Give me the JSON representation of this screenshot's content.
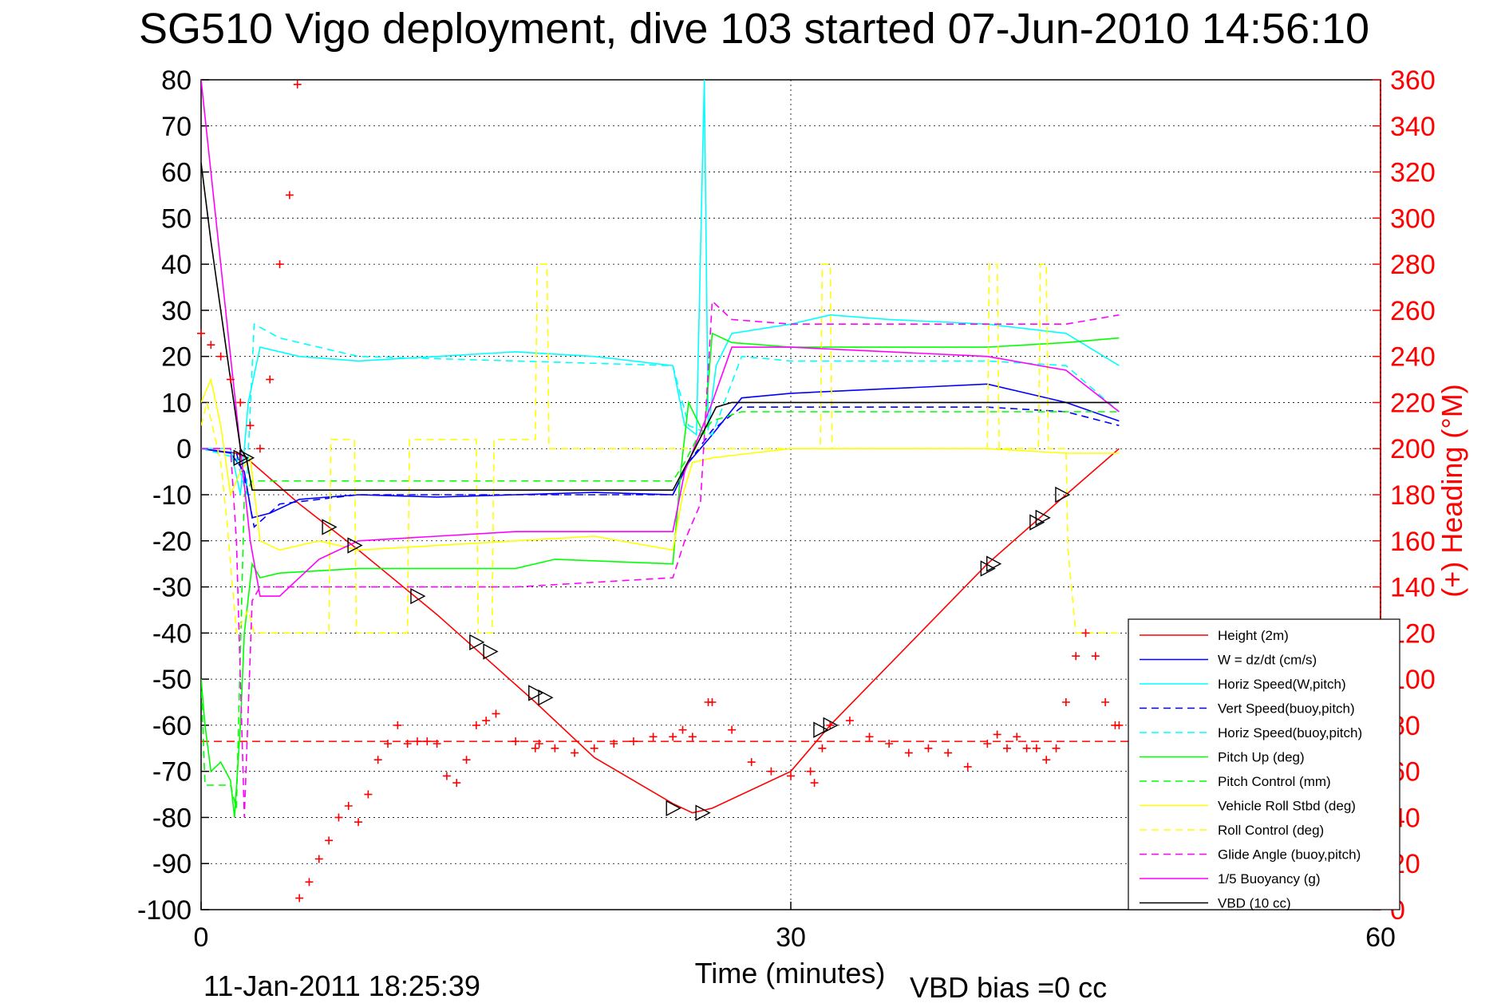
{
  "chart_data": {
    "type": "line",
    "title": "SG510 Vigo deployment, dive 103 started 07-Jun-2010 14:56:10",
    "xlabel": "Time (minutes)",
    "ylabel": "",
    "y2label": "(+) Heading (°M)",
    "xlim": [
      0,
      60
    ],
    "ylim": [
      -100,
      80
    ],
    "y2lim": [
      0,
      360
    ],
    "xticks": [
      "0",
      "30",
      "60"
    ],
    "yticks": [
      "80",
      "70",
      "60",
      "50",
      "40",
      "30",
      "20",
      "10",
      "0",
      "-10",
      "-20",
      "-30",
      "-40",
      "-50",
      "-60",
      "-70",
      "-80",
      "-90",
      "-100"
    ],
    "y2ticks": [
      "360",
      "340",
      "320",
      "300",
      "280",
      "260",
      "240",
      "220",
      "200",
      "180",
      "160",
      "140",
      "120",
      "100",
      "80",
      "60",
      "40",
      "20",
      "0"
    ],
    "grid": true,
    "legend_position": "bottom-right",
    "footer_date": "11-Jan-2011 18:25:39",
    "footer_bias": "VBD bias =0 cc",
    "series": [
      {
        "name": "Height (2m)",
        "color": "#ff0000",
        "style": "solid",
        "x": [
          0,
          1.8,
          2.3,
          5,
          8,
          12,
          17,
          20,
          24,
          25,
          26,
          30,
          32,
          40,
          44,
          46.7
        ],
        "y": [
          0,
          -1,
          -2,
          -12,
          -22,
          -36,
          -55,
          -67,
          -77,
          -79,
          -78,
          -70,
          -60,
          -25,
          -10,
          0
        ]
      },
      {
        "name": "W = dz/dt (cm/s)",
        "color": "#0000ff",
        "style": "solid",
        "x": [
          0,
          1.5,
          2.2,
          2.6,
          3.5,
          5,
          8,
          12,
          16,
          20,
          24,
          24.8,
          26,
          27.5,
          30,
          35,
          40,
          44,
          46.7
        ],
        "y": [
          0,
          -1,
          -5,
          -15,
          -14,
          -11,
          -10,
          -10.5,
          -10,
          -9.5,
          -10,
          -3,
          3,
          11,
          12,
          13,
          14,
          10,
          6
        ]
      },
      {
        "name": "Horiz Speed(W,pitch)",
        "color": "#00ffff",
        "style": "solid",
        "x": [
          0,
          1.5,
          2,
          2.4,
          3,
          5,
          8,
          12,
          16,
          20,
          24,
          24.6,
          25.2,
          25.6,
          25.8,
          26.2,
          27,
          30,
          32,
          35,
          40,
          44,
          46.7
        ],
        "y": [
          0,
          0,
          -10,
          10,
          22,
          20,
          19,
          20,
          21,
          20,
          18,
          5,
          3,
          80,
          4,
          18,
          25,
          27,
          29,
          28,
          27,
          25,
          18
        ]
      },
      {
        "name": "Vert Speed(buoy,pitch)",
        "color": "#0000ff",
        "style": "dashed",
        "x": [
          0,
          1.8,
          2.3,
          2.7,
          4,
          8,
          16,
          24,
          24.8,
          26,
          27.5,
          30,
          40,
          44,
          46.7
        ],
        "y": [
          0,
          -1,
          -8,
          -17,
          -12,
          -10,
          -10,
          -10,
          -3,
          4,
          9,
          9,
          9,
          8,
          5
        ]
      },
      {
        "name": "Horiz Speed(buoy,pitch)",
        "color": "#00ffff",
        "style": "dashed",
        "x": [
          0,
          1.8,
          2.3,
          2.7,
          4,
          8,
          16,
          24,
          24.8,
          26,
          27.5,
          30,
          40,
          44,
          46.7
        ],
        "y": [
          0,
          -2,
          -10,
          27,
          24,
          20,
          19,
          18,
          5,
          3,
          20,
          19,
          19,
          18,
          8
        ]
      },
      {
        "name": "Pitch Up (deg)",
        "color": "#00ff00",
        "style": "solid",
        "x": [
          0,
          0.2,
          0.5,
          1,
          1.5,
          1.7,
          2,
          2.2,
          2.6,
          3,
          4,
          8,
          12,
          16,
          18,
          24,
          24.4,
          24.8,
          25.6,
          26,
          27,
          30,
          40,
          44,
          46.7
        ],
        "y": [
          -50,
          -60,
          -70,
          -68,
          -72,
          -80,
          -60,
          -40,
          -25,
          -28,
          -27,
          -26,
          -26,
          -26,
          -24,
          -25,
          -5,
          10,
          3,
          25,
          23,
          22,
          22,
          23,
          24
        ]
      },
      {
        "name": "Pitch Control (mm)",
        "color": "#00ff00",
        "style": "dashed",
        "x": [
          0,
          0.2,
          1.5,
          1.8,
          2.2,
          2.6,
          4,
          12,
          24,
          24.6,
          25.2,
          26,
          27.5,
          30,
          40,
          46.7
        ],
        "y": [
          -50,
          -73,
          -73,
          -78,
          -10,
          -7,
          -7,
          -7,
          -7,
          -3,
          2,
          6,
          8,
          8,
          8,
          8
        ]
      },
      {
        "name": "Vehicle Roll Stbd (deg)",
        "color": "#ffff00",
        "style": "solid",
        "x": [
          0,
          0.5,
          1,
          1.5,
          2,
          2.5,
          3,
          4,
          6,
          8,
          12,
          16,
          20,
          24,
          24.5,
          25,
          26,
          28,
          30,
          32,
          35,
          40,
          44,
          46.7
        ],
        "y": [
          10,
          15,
          5,
          -10,
          -5,
          -2,
          -20,
          -22,
          -20,
          -22,
          -21,
          -20,
          -19,
          -22,
          -10,
          -3,
          -2,
          -1,
          0,
          0,
          0,
          0,
          -1,
          -1
        ]
      },
      {
        "name": "Roll Control (deg)",
        "color": "#ffff00",
        "style": "dashed",
        "x": [
          0,
          0.3,
          1,
          1.3,
          1.8,
          2.4,
          2.7,
          4,
          6.5,
          6.6,
          7.8,
          7.9,
          9,
          10.5,
          10.6,
          11,
          14,
          14.1,
          14.8,
          14.9,
          17,
          17.1,
          17.6,
          17.7,
          24,
          24.1,
          31.5,
          31.6,
          32,
          32.1,
          40,
          40.1,
          40.5,
          40.6,
          42.6,
          42.7,
          43,
          43.1,
          44,
          44.1,
          44.5,
          44.6,
          46.7
        ],
        "y": [
          5,
          10,
          -3,
          -15,
          -40,
          -35,
          -40,
          -40,
          -40,
          2,
          2,
          -40,
          -40,
          -40,
          2,
          2,
          2,
          -40,
          -40,
          2,
          2,
          40,
          40,
          0,
          0,
          0,
          0,
          40,
          40,
          0,
          0,
          40,
          40,
          0,
          0,
          40,
          40,
          0,
          0,
          -22,
          -40,
          -40,
          -40
        ]
      },
      {
        "name": "Glide Angle (buoy,pitch)",
        "color": "#ff00ff",
        "style": "dashed",
        "x": [
          0,
          1.5,
          1.8,
          2.2,
          2.6,
          3,
          4,
          8,
          16,
          24,
          24.6,
          25.4,
          26,
          27,
          30,
          40,
          44,
          46.7
        ],
        "y": [
          0,
          0,
          -20,
          -80,
          -33,
          -30,
          -30,
          -30,
          -30,
          -28,
          -20,
          -12,
          32,
          28,
          27,
          27,
          27,
          29
        ]
      },
      {
        "name": "1/5 Buoyancy (g)",
        "color": "#ff00ff",
        "style": "solid",
        "x": [
          0,
          0.5,
          1,
          1.5,
          2,
          2.5,
          3,
          4,
          6,
          8,
          12,
          16,
          20,
          24,
          24.6,
          26,
          27,
          30,
          40,
          44,
          46.7
        ],
        "y": [
          80,
          60,
          40,
          20,
          0,
          -20,
          -32,
          -32,
          -24,
          -20,
          -19,
          -18,
          -18,
          -18,
          -5,
          10,
          22,
          22,
          20,
          17,
          8
        ]
      },
      {
        "name": "VBD (10 cc)",
        "color": "#000000",
        "style": "solid",
        "x": [
          0,
          0.5,
          1,
          1.5,
          2,
          2.3,
          2.6,
          4,
          12,
          24,
          25,
          26.2,
          27,
          30,
          40,
          46.7
        ],
        "y": [
          62,
          45,
          30,
          15,
          0,
          -2,
          -9,
          -9,
          -9,
          -9,
          -1,
          9,
          10,
          10,
          10,
          10
        ]
      }
    ],
    "heading": {
      "name": "Heading",
      "color": "#ff0000",
      "marker": "+",
      "axis": "right",
      "x": [
        0,
        0.5,
        1,
        1.5,
        2,
        2.5,
        3,
        3.5,
        4,
        4.5,
        4.9,
        5,
        5.5,
        6,
        6.5,
        7,
        7.5,
        8,
        8.5,
        9,
        9.5,
        10,
        10.5,
        11,
        11.5,
        12,
        12.5,
        13,
        13.5,
        14,
        14.5,
        15,
        16,
        17,
        17.2,
        18,
        19,
        20,
        21,
        22,
        23,
        24,
        24.5,
        25,
        25.8,
        26,
        27,
        28,
        29,
        30,
        31,
        31.2,
        31.6,
        32,
        33,
        34,
        35,
        36,
        37,
        38,
        39,
        40,
        40.5,
        41,
        41.5,
        42,
        42.5,
        43,
        43.5,
        44,
        44.5,
        45,
        45.5,
        46,
        46.5,
        46.7
      ],
      "y": [
        250,
        245,
        240,
        230,
        220,
        210,
        200,
        230,
        280,
        310,
        358,
        5,
        12,
        22,
        30,
        40,
        45,
        38,
        50,
        65,
        72,
        80,
        72,
        73,
        73,
        72,
        58,
        55,
        65,
        80,
        82,
        85,
        73,
        70,
        72,
        70,
        68,
        70,
        72,
        73,
        75,
        75,
        78,
        75,
        90,
        90,
        78,
        64,
        60,
        58,
        60,
        55,
        70,
        80,
        82,
        75,
        72,
        68,
        70,
        68,
        62,
        72,
        76,
        70,
        75,
        70,
        70,
        65,
        70,
        90,
        110,
        120,
        110,
        90,
        80,
        80
      ]
    },
    "heading_mean": 73,
    "markers": {
      "x": [
        2,
        2.3,
        6.5,
        7.8,
        11,
        14,
        14.7,
        17,
        17.5,
        24,
        25.5,
        31.5,
        32,
        40,
        40.3,
        42.5,
        42.8,
        43.8
      ],
      "y": [
        -2,
        -2,
        -17,
        -21,
        -32,
        -42,
        -44,
        -53,
        -54,
        -78,
        -79,
        -61,
        -60,
        -26,
        -25,
        -16,
        -15,
        -10
      ]
    }
  }
}
